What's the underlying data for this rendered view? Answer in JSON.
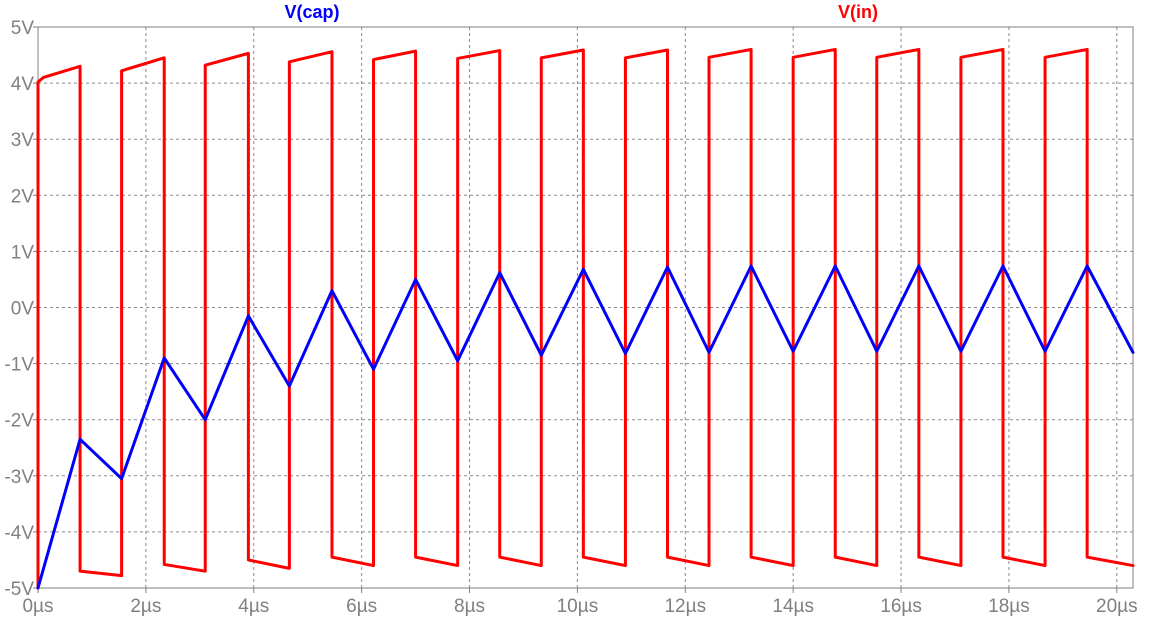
{
  "chart_data": {
    "type": "line",
    "xlabel": "",
    "ylabel": "",
    "xlim": [
      0,
      20.3
    ],
    "ylim": [
      -5,
      5
    ],
    "grid": true,
    "x_ticks": [
      {
        "v": 0,
        "label": "0µs"
      },
      {
        "v": 2,
        "label": "2µs"
      },
      {
        "v": 4,
        "label": "4µs"
      },
      {
        "v": 6,
        "label": "6µs"
      },
      {
        "v": 8,
        "label": "8µs"
      },
      {
        "v": 10,
        "label": "10µs"
      },
      {
        "v": 12,
        "label": "12µs"
      },
      {
        "v": 14,
        "label": "14µs"
      },
      {
        "v": 16,
        "label": "16µs"
      },
      {
        "v": 18,
        "label": "18µs"
      },
      {
        "v": 20,
        "label": "20µs"
      }
    ],
    "y_ticks": [
      {
        "v": 5,
        "label": "5V"
      },
      {
        "v": 4,
        "label": "4V"
      },
      {
        "v": 3,
        "label": "3V"
      },
      {
        "v": 2,
        "label": "2V"
      },
      {
        "v": 1,
        "label": "1V"
      },
      {
        "v": 0,
        "label": "0V"
      },
      {
        "v": -1,
        "label": "-1V"
      },
      {
        "v": -2,
        "label": "-2V"
      },
      {
        "v": -3,
        "label": "-3V"
      },
      {
        "v": -4,
        "label": "-4V"
      },
      {
        "v": -5,
        "label": "-5V"
      }
    ],
    "series": [
      {
        "name": "V(cap)",
        "color": "#0000ff",
        "points": [
          [
            0,
            -5.0
          ],
          [
            0.78,
            -2.35
          ],
          [
            1.55,
            -3.05
          ],
          [
            2.34,
            -0.9
          ],
          [
            3.1,
            -2.0
          ],
          [
            3.9,
            -0.15
          ],
          [
            4.66,
            -1.4
          ],
          [
            5.45,
            0.3
          ],
          [
            6.22,
            -1.1
          ],
          [
            7.0,
            0.5
          ],
          [
            7.78,
            -0.95
          ],
          [
            8.56,
            0.62
          ],
          [
            9.33,
            -0.85
          ],
          [
            10.11,
            0.68
          ],
          [
            10.89,
            -0.82
          ],
          [
            11.67,
            0.72
          ],
          [
            12.44,
            -0.8
          ],
          [
            13.22,
            0.74
          ],
          [
            14.0,
            -0.78
          ],
          [
            14.78,
            0.74
          ],
          [
            15.55,
            -0.78
          ],
          [
            16.33,
            0.74
          ],
          [
            17.11,
            -0.78
          ],
          [
            17.89,
            0.74
          ],
          [
            18.67,
            -0.78
          ],
          [
            19.45,
            0.74
          ],
          [
            20.3,
            -0.8
          ]
        ]
      },
      {
        "name": "V(in)",
        "color": "#ff0000",
        "points": [
          [
            0,
            -5.0
          ],
          [
            0,
            4.02
          ],
          [
            0.1,
            4.1
          ],
          [
            0.78,
            4.3
          ],
          [
            0.78,
            -4.7
          ],
          [
            1.55,
            -4.78
          ],
          [
            1.55,
            4.22
          ],
          [
            2.34,
            4.45
          ],
          [
            2.34,
            -4.58
          ],
          [
            3.1,
            -4.7
          ],
          [
            3.1,
            4.32
          ],
          [
            3.9,
            4.53
          ],
          [
            3.9,
            -4.5
          ],
          [
            4.66,
            -4.65
          ],
          [
            4.66,
            4.38
          ],
          [
            5.45,
            4.56
          ],
          [
            5.45,
            -4.45
          ],
          [
            6.22,
            -4.6
          ],
          [
            6.22,
            4.42
          ],
          [
            7.0,
            4.57
          ],
          [
            7.0,
            -4.45
          ],
          [
            7.78,
            -4.6
          ],
          [
            7.78,
            4.44
          ],
          [
            8.56,
            4.58
          ],
          [
            8.56,
            -4.45
          ],
          [
            9.33,
            -4.6
          ],
          [
            9.33,
            4.45
          ],
          [
            10.11,
            4.59
          ],
          [
            10.11,
            -4.45
          ],
          [
            10.89,
            -4.6
          ],
          [
            10.89,
            4.45
          ],
          [
            11.67,
            4.59
          ],
          [
            11.67,
            -4.45
          ],
          [
            12.44,
            -4.6
          ],
          [
            12.44,
            4.46
          ],
          [
            13.22,
            4.6
          ],
          [
            13.22,
            -4.45
          ],
          [
            14.0,
            -4.6
          ],
          [
            14.0,
            4.46
          ],
          [
            14.78,
            4.6
          ],
          [
            14.78,
            -4.45
          ],
          [
            15.55,
            -4.6
          ],
          [
            15.55,
            4.46
          ],
          [
            16.33,
            4.6
          ],
          [
            16.33,
            -4.45
          ],
          [
            17.11,
            -4.6
          ],
          [
            17.11,
            4.46
          ],
          [
            17.89,
            4.6
          ],
          [
            17.89,
            -4.45
          ],
          [
            18.67,
            -4.6
          ],
          [
            18.67,
            4.46
          ],
          [
            19.45,
            4.6
          ],
          [
            19.45,
            -4.45
          ],
          [
            20.3,
            -4.6
          ]
        ]
      }
    ]
  }
}
